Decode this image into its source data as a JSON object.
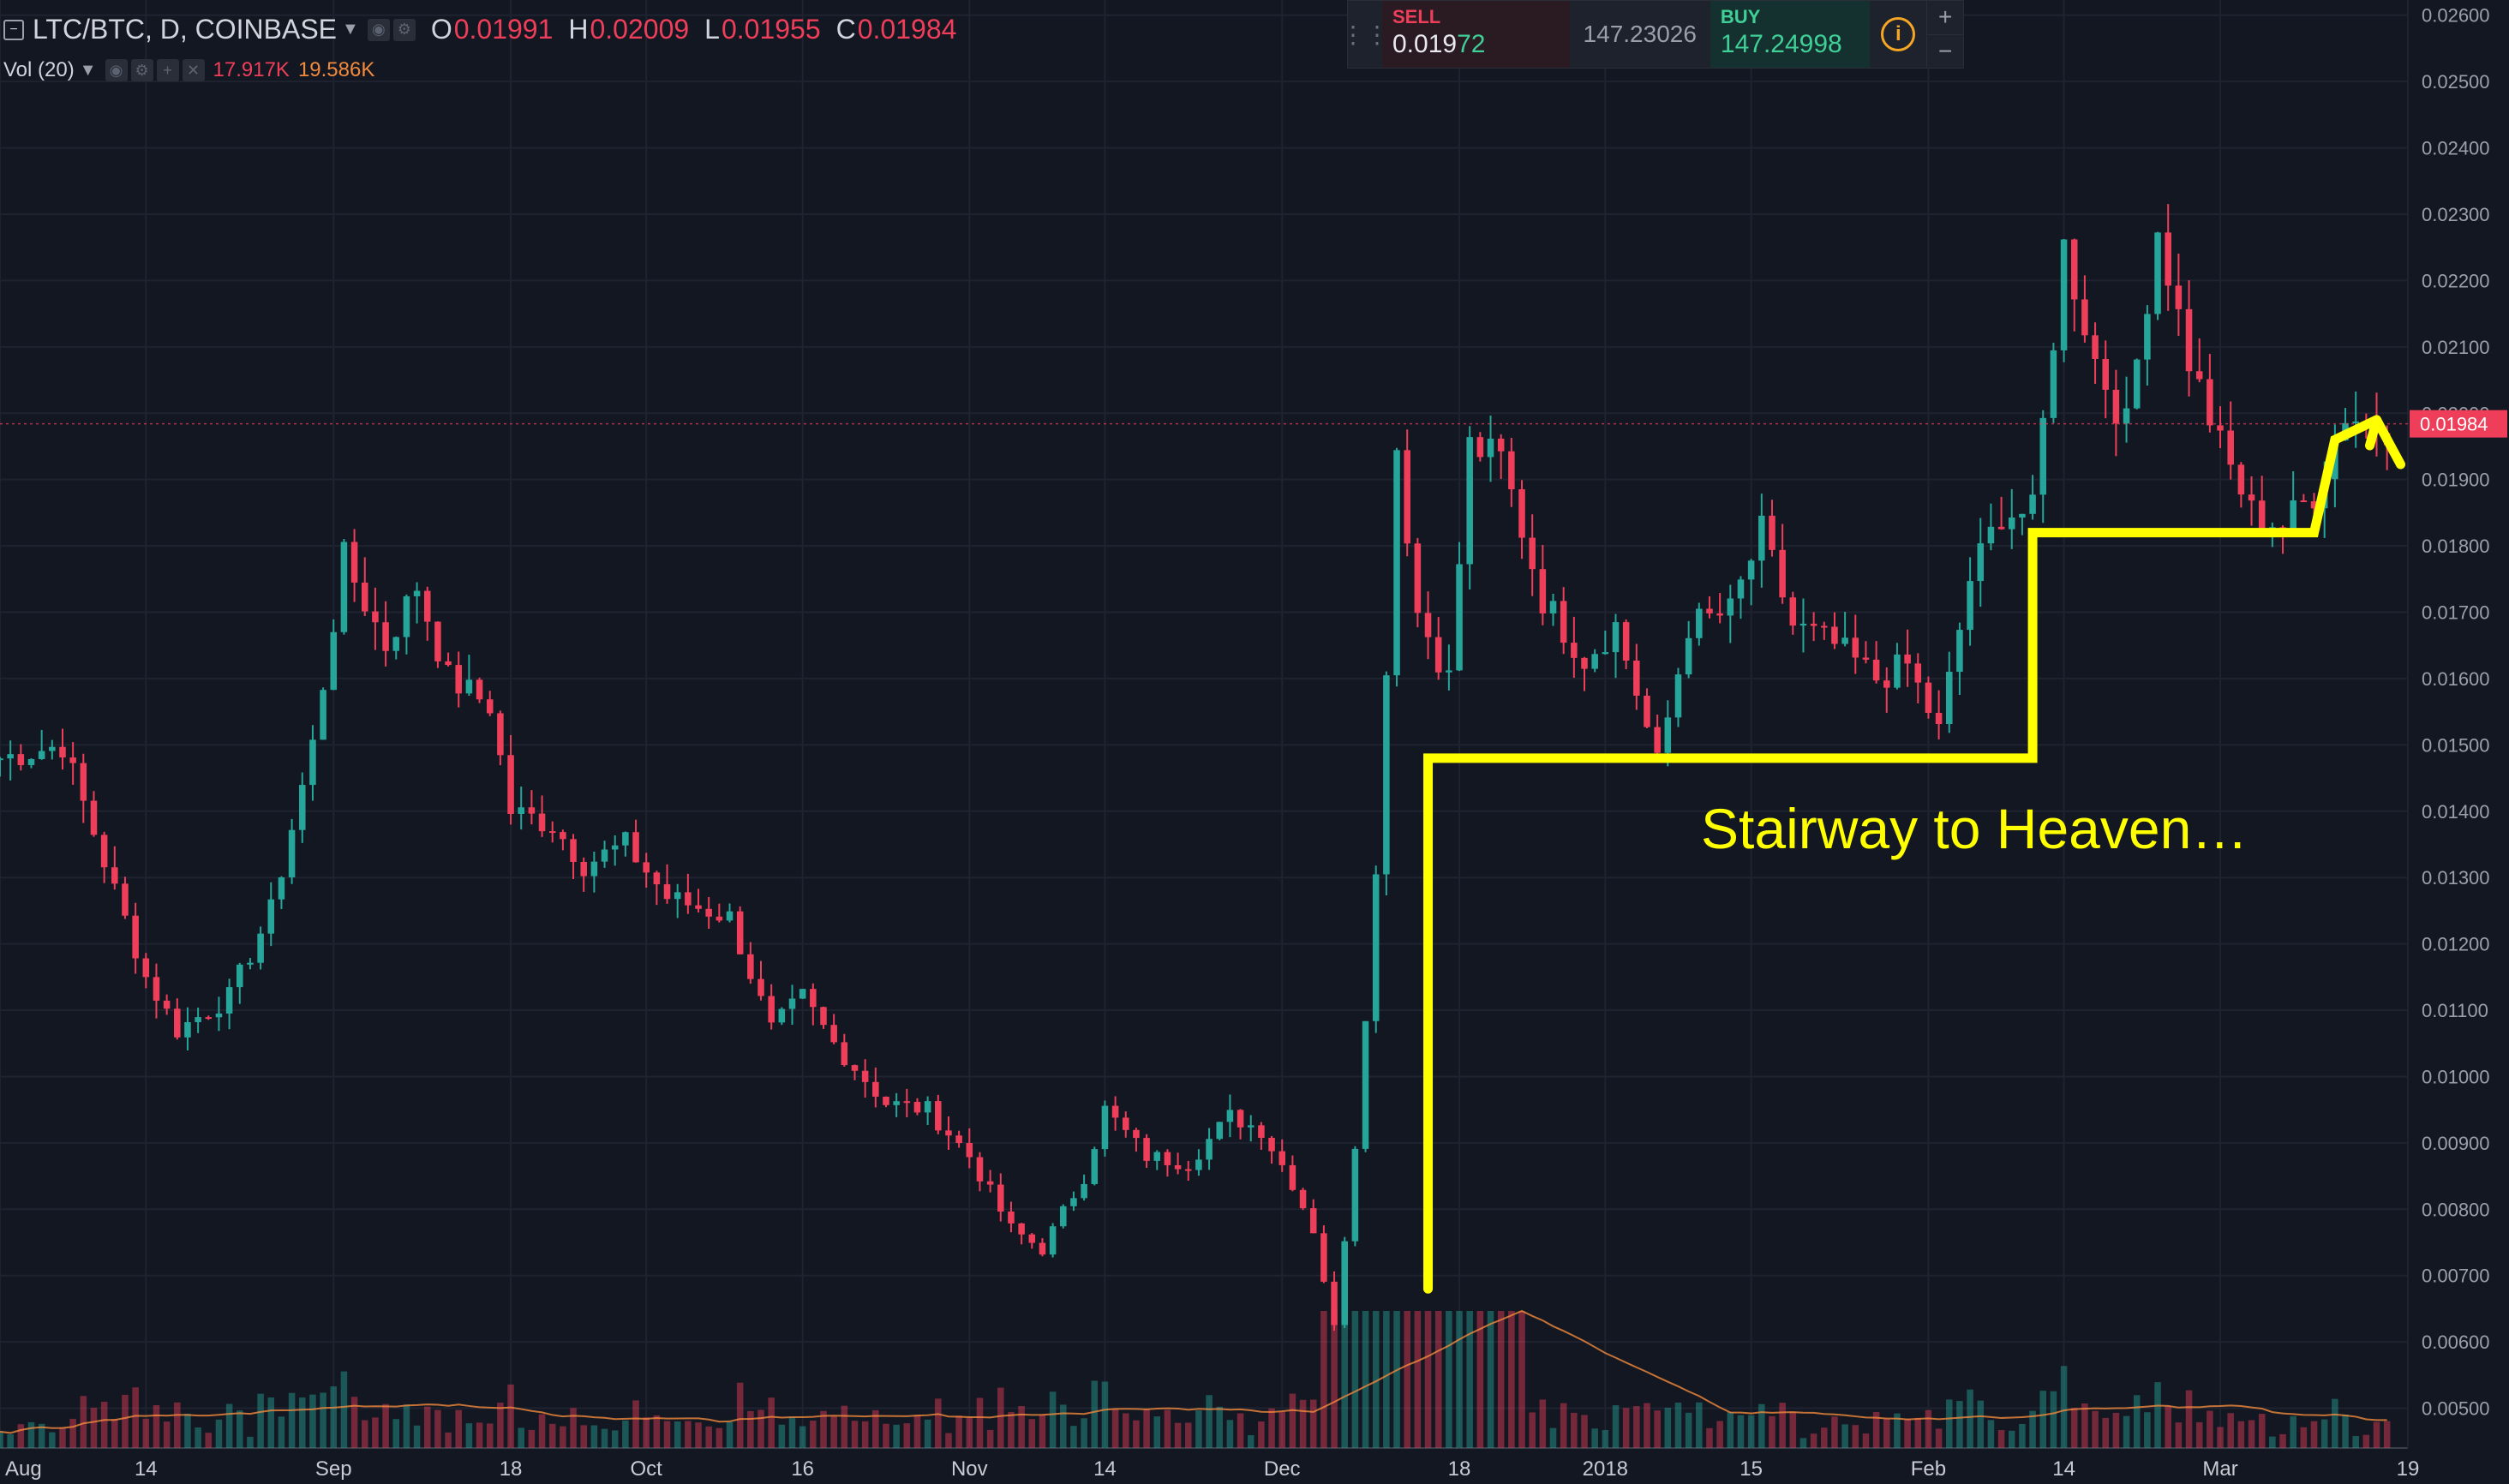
{
  "header": {
    "symbol": "LTC/BTC, D, COINBASE",
    "ohlc": [
      {
        "label": "O",
        "value": "0.01991"
      },
      {
        "label": "H",
        "value": "0.02009"
      },
      {
        "label": "L",
        "value": "0.01955"
      },
      {
        "label": "C",
        "value": "0.01984"
      }
    ],
    "vol_label": "Vol (20)",
    "vol_value": "17.917K",
    "vol_ma": "19.586K"
  },
  "trade_panel": {
    "sell_label": "SELL",
    "sell_price_main": "0.019",
    "sell_price_hl": "72",
    "spread": "147.23026",
    "buy_label": "BUY",
    "buy_price": "147.24998",
    "plus": "+",
    "minus": "−"
  },
  "colors": {
    "background": "#131722",
    "up": "#26a69a",
    "down": "#ef3e5a",
    "grid": "#1f2330",
    "annotation": "#ffff00",
    "vol_ma_line": "#f28a3c"
  },
  "chart_data": {
    "type": "candlestick",
    "title": "LTC/BTC, D, COINBASE",
    "yaxis": {
      "ticks": [
        "0.02600",
        "0.02500",
        "0.02400",
        "0.02300",
        "0.02200",
        "0.02100",
        "0.02000",
        "0.01900",
        "0.01800",
        "0.01700",
        "0.01600",
        "0.01500",
        "0.01400",
        "0.01300",
        "0.01200",
        "0.01100",
        "0.01000",
        "0.00900",
        "0.00800",
        "0.00700",
        "0.00600",
        "0.00500"
      ],
      "range": [
        0.0044,
        0.0261
      ],
      "current_price_label": "0.01984"
    },
    "xaxis": {
      "ticks": [
        "Aug",
        "14",
        "Sep",
        "18",
        "Oct",
        "16",
        "Nov",
        "14",
        "Dec",
        "18",
        "2018",
        "15",
        "Feb",
        "14",
        "Mar",
        "19"
      ],
      "range": [
        "2017-07-31",
        "2018-03-19"
      ]
    },
    "close_path": [
      [
        "2017-07-31",
        0.0148
      ],
      [
        "2017-08-06",
        0.015
      ],
      [
        "2017-08-11",
        0.0128
      ],
      [
        "2017-08-14",
        0.0115
      ],
      [
        "2017-08-17",
        0.0107
      ],
      [
        "2017-08-22",
        0.0112
      ],
      [
        "2017-08-26",
        0.0125
      ],
      [
        "2017-08-30",
        0.015
      ],
      [
        "2017-09-02",
        0.0178
      ],
      [
        "2017-09-06",
        0.0165
      ],
      [
        "2017-09-09",
        0.0174
      ],
      [
        "2017-09-12",
        0.016
      ],
      [
        "2017-09-16",
        0.0156
      ],
      [
        "2017-09-18",
        0.014
      ],
      [
        "2017-09-22",
        0.0138
      ],
      [
        "2017-09-25",
        0.0132
      ],
      [
        "2017-09-29",
        0.0135
      ],
      [
        "2017-10-03",
        0.0127
      ],
      [
        "2017-10-09",
        0.0124
      ],
      [
        "2017-10-13",
        0.0107
      ],
      [
        "2017-10-16",
        0.0112
      ],
      [
        "2017-10-19",
        0.0105
      ],
      [
        "2017-10-24",
        0.0096
      ],
      [
        "2017-10-28",
        0.0095
      ],
      [
        "2017-11-01",
        0.0088
      ],
      [
        "2017-11-05",
        0.0077
      ],
      [
        "2017-11-08",
        0.0074
      ],
      [
        "2017-11-12",
        0.0085
      ],
      [
        "2017-11-14",
        0.0095
      ],
      [
        "2017-11-18",
        0.0088
      ],
      [
        "2017-11-22",
        0.0087
      ],
      [
        "2017-11-26",
        0.0094
      ],
      [
        "2017-11-29",
        0.0092
      ],
      [
        "2017-12-02",
        0.0084
      ],
      [
        "2017-12-04",
        0.0077
      ],
      [
        "2017-12-06",
        0.0062
      ],
      [
        "2017-12-08",
        0.009
      ],
      [
        "2017-12-10",
        0.013
      ],
      [
        "2017-12-12",
        0.0195
      ],
      [
        "2017-12-14",
        0.017
      ],
      [
        "2017-12-17",
        0.016
      ],
      [
        "2017-12-19",
        0.0195
      ],
      [
        "2017-12-22",
        0.0193
      ],
      [
        "2017-12-26",
        0.0172
      ],
      [
        "2017-12-30",
        0.0163
      ],
      [
        "2018-01-02",
        0.0168
      ],
      [
        "2018-01-04",
        0.0158
      ],
      [
        "2018-01-06",
        0.0147
      ],
      [
        "2018-01-09",
        0.0168
      ],
      [
        "2018-01-13",
        0.017
      ],
      [
        "2018-01-16",
        0.0182
      ],
      [
        "2018-01-19",
        0.0168
      ],
      [
        "2018-01-23",
        0.0165
      ],
      [
        "2018-01-27",
        0.016
      ],
      [
        "2018-01-30",
        0.0162
      ],
      [
        "2018-02-02",
        0.0152
      ],
      [
        "2018-02-05",
        0.0175
      ],
      [
        "2018-02-08",
        0.0185
      ],
      [
        "2018-02-11",
        0.0185
      ],
      [
        "2018-02-14",
        0.0225
      ],
      [
        "2018-02-17",
        0.0208
      ],
      [
        "2018-02-20",
        0.0198
      ],
      [
        "2018-02-23",
        0.0228
      ],
      [
        "2018-02-26",
        0.0208
      ],
      [
        "2018-03-01",
        0.0195
      ],
      [
        "2018-03-04",
        0.0185
      ],
      [
        "2018-03-07",
        0.0183
      ],
      [
        "2018-03-10",
        0.0188
      ],
      [
        "2018-03-13",
        0.02
      ],
      [
        "2018-03-16",
        0.0198
      ]
    ]
  },
  "annotation": {
    "text": "Stairway to Heaven…"
  }
}
